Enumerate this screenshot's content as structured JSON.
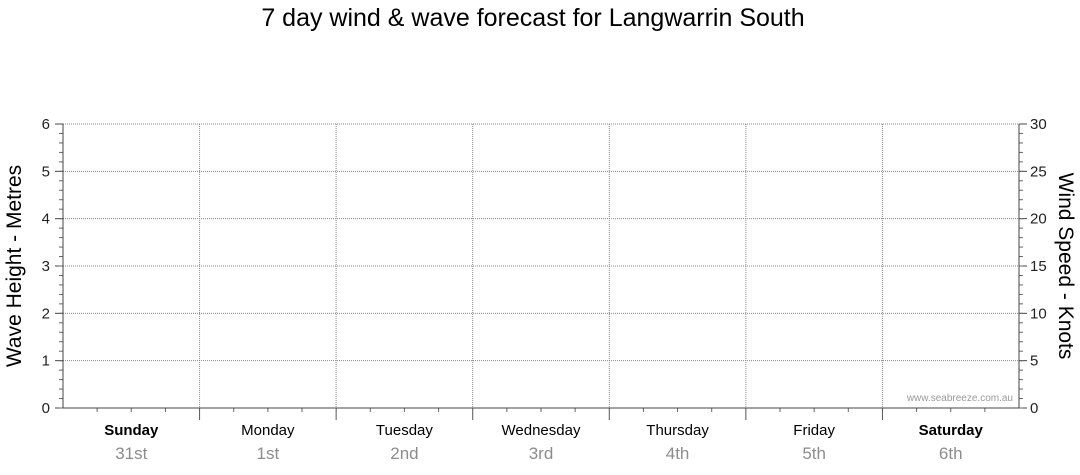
{
  "chart_data": {
    "type": "line",
    "title": "7 day wind & wave forecast for Langwarrin South",
    "y_left": {
      "label": "Wave Height - Metres",
      "ylim": [
        0,
        6
      ],
      "ticks": [
        "0",
        "1",
        "2",
        "3",
        "4",
        "5",
        "6"
      ]
    },
    "y_right": {
      "label": "Wind Speed - Knots",
      "ylim": [
        0,
        30
      ],
      "ticks": [
        "0",
        "5",
        "10",
        "15",
        "20",
        "25",
        "30"
      ]
    },
    "x": {
      "days": [
        {
          "name": "Sunday",
          "date": "31st",
          "weekend": true
        },
        {
          "name": "Monday",
          "date": "1st",
          "weekend": false
        },
        {
          "name": "Tuesday",
          "date": "2nd",
          "weekend": false
        },
        {
          "name": "Wednesday",
          "date": "3rd",
          "weekend": false
        },
        {
          "name": "Thursday",
          "date": "4th",
          "weekend": false
        },
        {
          "name": "Friday",
          "date": "5th",
          "weekend": false
        },
        {
          "name": "Saturday",
          "date": "6th",
          "weekend": true
        }
      ]
    },
    "series": [],
    "grid": true,
    "watermark": "www.seabreeze.com.au"
  }
}
